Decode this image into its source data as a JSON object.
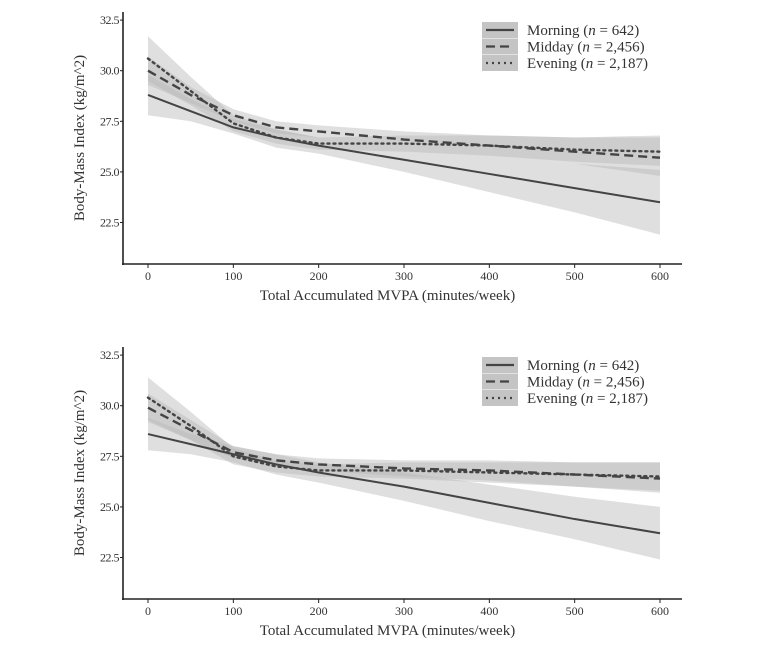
{
  "chart_data": [
    {
      "type": "line",
      "title": "",
      "xlabel": "Total Accumulated MVPA  (minutes/week)",
      "ylabel": "Body-Mass Index (kg/m^2)",
      "xlim": [
        0,
        600
      ],
      "ylim": [
        20.45,
        32.9
      ],
      "xticks": [
        "0",
        "100",
        "200",
        "300",
        "400",
        "500",
        "600"
      ],
      "xtick_values": [
        0,
        100,
        200,
        300,
        400,
        500,
        600
      ],
      "yticks": [
        "22.5",
        "25.0",
        "27.5",
        "30.0",
        "32.5"
      ],
      "ytick_values": [
        22.5,
        25,
        27.5,
        30,
        32.5
      ],
      "grid": false,
      "legend_position": "top-right",
      "x": [
        0,
        50,
        100,
        150,
        200,
        300,
        400,
        500,
        600
      ],
      "series": [
        {
          "name": "Morning",
          "legend_label": "Morning (n = 642)",
          "style": "solid",
          "values": [
            28.8,
            28.0,
            27.2,
            26.7,
            26.3,
            25.6,
            24.9,
            24.2,
            23.5
          ],
          "lower": [
            27.8,
            27.5,
            26.9,
            26.2,
            25.9,
            25.0,
            24.0,
            23.0,
            21.9
          ],
          "upper": [
            29.8,
            28.6,
            27.6,
            27.1,
            26.7,
            26.2,
            25.8,
            25.4,
            25.1
          ]
        },
        {
          "name": "Midday",
          "legend_label": "Midday  (n = 2,456)",
          "style": "dashed",
          "values": [
            30.0,
            28.8,
            27.8,
            27.2,
            27.0,
            26.6,
            26.3,
            26.0,
            25.7
          ],
          "lower": [
            29.3,
            28.4,
            27.5,
            26.9,
            26.7,
            26.2,
            25.8,
            25.4,
            24.8
          ],
          "upper": [
            30.7,
            29.2,
            28.1,
            27.5,
            27.3,
            27.0,
            26.8,
            26.7,
            26.8
          ]
        },
        {
          "name": "Evening",
          "legend_label": "Evening (n = 2,187)",
          "style": "dotted",
          "values": [
            30.6,
            29.0,
            27.4,
            26.7,
            26.4,
            26.4,
            26.3,
            26.1,
            26.0
          ],
          "lower": [
            29.5,
            28.3,
            27.0,
            26.4,
            26.1,
            26.0,
            25.8,
            25.5,
            25.3
          ],
          "upper": [
            31.7,
            29.7,
            27.8,
            27.1,
            26.7,
            26.8,
            26.8,
            26.7,
            26.7
          ]
        }
      ]
    },
    {
      "type": "line",
      "title": "",
      "xlabel": "Total Accumulated MVPA  (minutes/week)",
      "ylabel": "Body-Mass Index (kg/m^2)",
      "xlim": [
        0,
        600
      ],
      "ylim": [
        20.45,
        32.9
      ],
      "xticks": [
        "0",
        "100",
        "200",
        "300",
        "400",
        "500",
        "600"
      ],
      "xtick_values": [
        0,
        100,
        200,
        300,
        400,
        500,
        600
      ],
      "yticks": [
        "22.5",
        "25.0",
        "27.5",
        "30.0",
        "32.5"
      ],
      "ytick_values": [
        22.5,
        25,
        27.5,
        30,
        32.5
      ],
      "grid": false,
      "legend_position": "top-right",
      "x": [
        0,
        50,
        100,
        150,
        200,
        300,
        400,
        500,
        600
      ],
      "series": [
        {
          "name": "Morning",
          "legend_label": "Morning (n = 642)",
          "style": "solid",
          "values": [
            28.6,
            28.1,
            27.6,
            27.1,
            26.7,
            26.0,
            25.2,
            24.4,
            23.7
          ],
          "lower": [
            27.8,
            27.6,
            27.2,
            26.6,
            26.2,
            25.3,
            24.3,
            23.4,
            22.4
          ],
          "upper": [
            29.4,
            28.6,
            28.0,
            27.6,
            27.2,
            26.7,
            26.1,
            25.5,
            25.0
          ]
        },
        {
          "name": "Midday",
          "legend_label": "Midday  (n = 2,456)",
          "style": "dashed",
          "values": [
            29.9,
            28.8,
            27.7,
            27.3,
            27.1,
            26.9,
            26.8,
            26.6,
            26.4
          ],
          "lower": [
            29.2,
            28.3,
            27.4,
            27.0,
            26.8,
            26.5,
            26.3,
            26.0,
            25.7
          ],
          "upper": [
            30.6,
            29.3,
            28.0,
            27.6,
            27.4,
            27.3,
            27.3,
            27.2,
            27.2
          ]
        },
        {
          "name": "Evening",
          "legend_label": "Evening (n = 2,187)",
          "style": "dotted",
          "values": [
            30.4,
            29.0,
            27.5,
            27.0,
            26.8,
            26.8,
            26.7,
            26.6,
            26.5
          ],
          "lower": [
            29.3,
            28.3,
            27.1,
            26.7,
            26.5,
            26.4,
            26.2,
            26.0,
            25.8
          ],
          "upper": [
            31.4,
            29.7,
            27.9,
            27.3,
            27.1,
            27.2,
            27.2,
            27.2,
            27.2
          ]
        }
      ]
    }
  ],
  "colors": {
    "line": "#444444",
    "band": "#b8b8b8",
    "legend_key_bg": "#c4c4c4",
    "axis": "#222222"
  }
}
